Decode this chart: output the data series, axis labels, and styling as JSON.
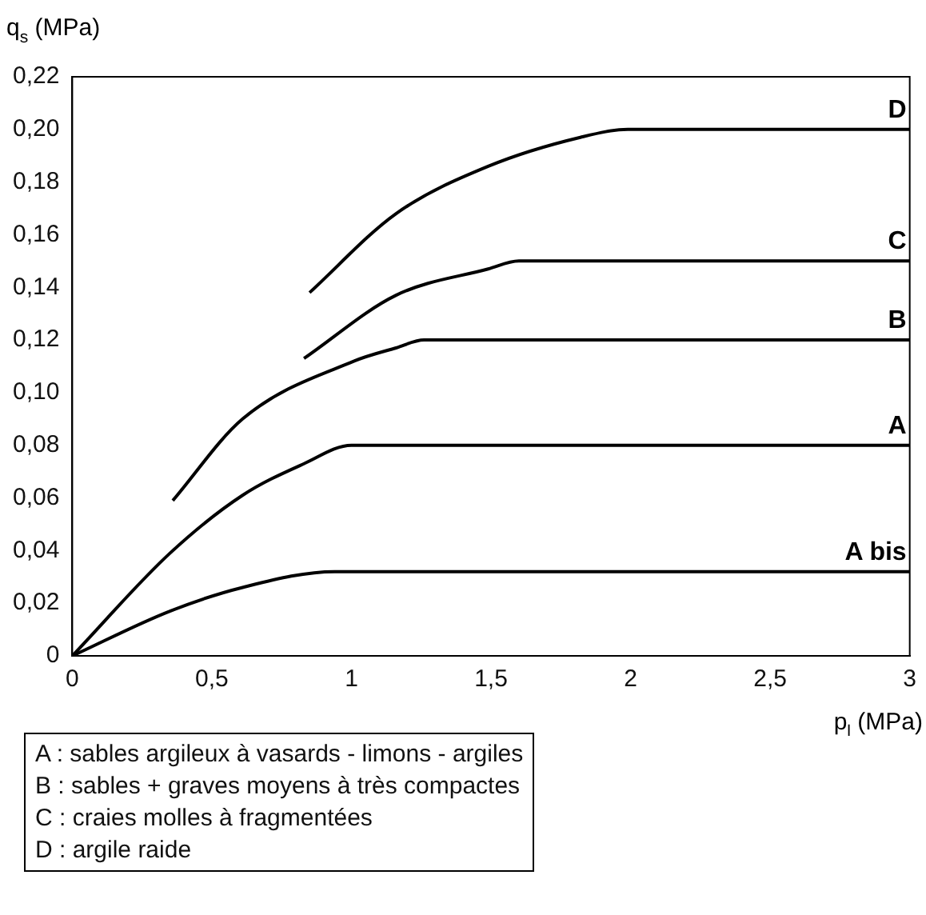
{
  "chart_data": {
    "type": "line",
    "xlabel": "p$_{l}$ (MPa)",
    "ylabel": "q$_{s}$ (MPa)",
    "series": [
      {
        "name": "D",
        "color": "#000000",
        "x": [
          0.85,
          1.16,
          1.49,
          1.82,
          1.99,
          3
        ],
        "values": [
          0.138,
          0.168,
          0.186,
          0.197,
          0.2,
          0.2
        ]
      },
      {
        "name": "C",
        "color": "#000000",
        "x": [
          0.83,
          1.16,
          1.49,
          1.6,
          3
        ],
        "values": [
          0.113,
          0.137,
          0.147,
          0.15,
          0.15
        ]
      },
      {
        "name": "B",
        "color": "#000000",
        "x": [
          0.36,
          0.61,
          1.01,
          1.16,
          1.26,
          3
        ],
        "values": [
          0.059,
          0.09,
          0.112,
          0.117,
          0.12,
          0.12
        ]
      },
      {
        "name": "A",
        "color": "#000000",
        "x": [
          0,
          0.35,
          0.61,
          0.83,
          1.0,
          3
        ],
        "values": [
          0,
          0.039,
          0.061,
          0.073,
          0.08,
          0.08
        ]
      },
      {
        "name": "A bis",
        "color": "#000000",
        "x": [
          0,
          0.35,
          0.61,
          0.94,
          3
        ],
        "values": [
          0,
          0.017,
          0.026,
          0.032,
          0.032
        ]
      }
    ],
    "xlim": [
      0,
      3
    ],
    "xticks": [
      0,
      {
        "value": 0.5,
        "label": "0,5"
      },
      1,
      {
        "value": 1.5,
        "label": "1,5"
      },
      2,
      {
        "value": 2.5,
        "label": "2,5"
      },
      3
    ],
    "ylim": [
      0,
      0.22
    ],
    "yticks": [
      0,
      {
        "value": 0.02,
        "label": "0,02"
      },
      {
        "value": 0.04,
        "label": "0,04"
      },
      {
        "value": 0.06,
        "label": "0,06"
      },
      {
        "value": 0.08,
        "label": "0,08"
      },
      {
        "value": 0.1,
        "label": "0,10"
      },
      {
        "value": 0.12,
        "label": "0,12"
      },
      {
        "value": 0.14,
        "label": "0,14"
      },
      {
        "value": 0.16,
        "label": "0,16"
      },
      {
        "value": 0.18,
        "label": "0,18"
      },
      {
        "value": 0.2,
        "label": "0,20"
      },
      {
        "value": 0.22,
        "label": "0,22"
      }
    ],
    "grid": false,
    "legend": false,
    "marker": "none",
    "line_style": "solid",
    "annotations": [
      "A : sables argileux à vasards - limons - argiles",
      "B : sables + graves moyens à très compactes",
      "C : craies molles à fragmentées",
      "D : argile raide"
    ]
  }
}
